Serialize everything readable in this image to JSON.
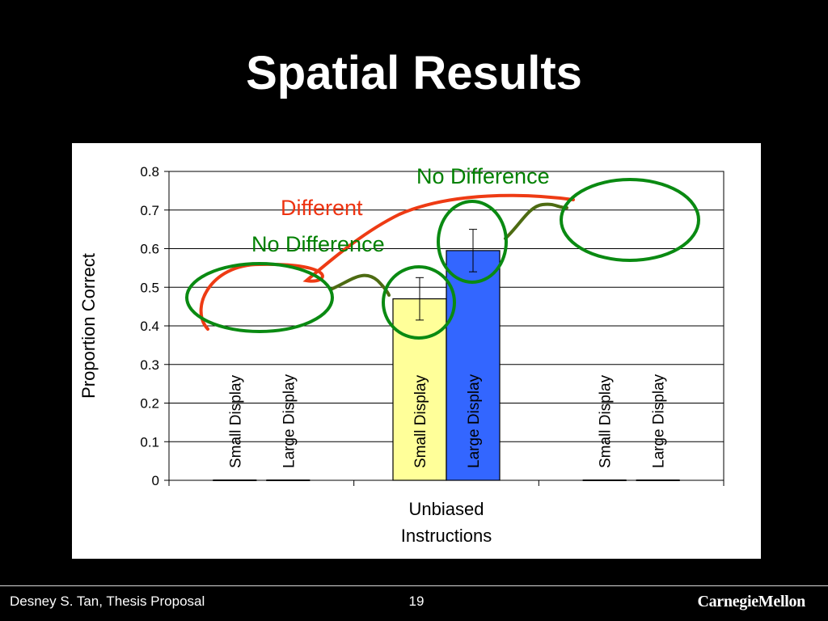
{
  "slide": {
    "title": "Spatial Results",
    "footer_left": "Desney S. Tan, Thesis Proposal",
    "page_number": "19",
    "logo_text": "CarnegieMellon"
  },
  "chart_data": {
    "type": "bar",
    "ylabel": "Proportion Correct",
    "ylim": [
      0,
      0.8
    ],
    "yticks": [
      "0",
      "0.1",
      "0.2",
      "0.3",
      "0.4",
      "0.5",
      "0.6",
      "0.7",
      "0.8"
    ],
    "grid": true,
    "groups": [
      {
        "label": "",
        "bars": [
          {
            "label": "Small Display",
            "value": null
          },
          {
            "label": "Large Display",
            "value": null
          }
        ]
      },
      {
        "label": "Unbiased Instructions",
        "bars": [
          {
            "label": "Small Display",
            "value": 0.47,
            "error_low": 0.415,
            "error_high": 0.525,
            "color": "#FFFF99"
          },
          {
            "label": "Large Display",
            "value": 0.595,
            "error_low": 0.54,
            "error_high": 0.65,
            "color": "#3366FF"
          }
        ]
      },
      {
        "label": "",
        "bars": [
          {
            "label": "Small Display",
            "value": null
          },
          {
            "label": "Large Display",
            "value": null
          }
        ]
      }
    ],
    "annotations": [
      {
        "text": "No Difference",
        "color": "#008000"
      },
      {
        "text": "Different",
        "color": "#EE3311"
      },
      {
        "text": "No Difference",
        "color": "#008000"
      }
    ]
  }
}
